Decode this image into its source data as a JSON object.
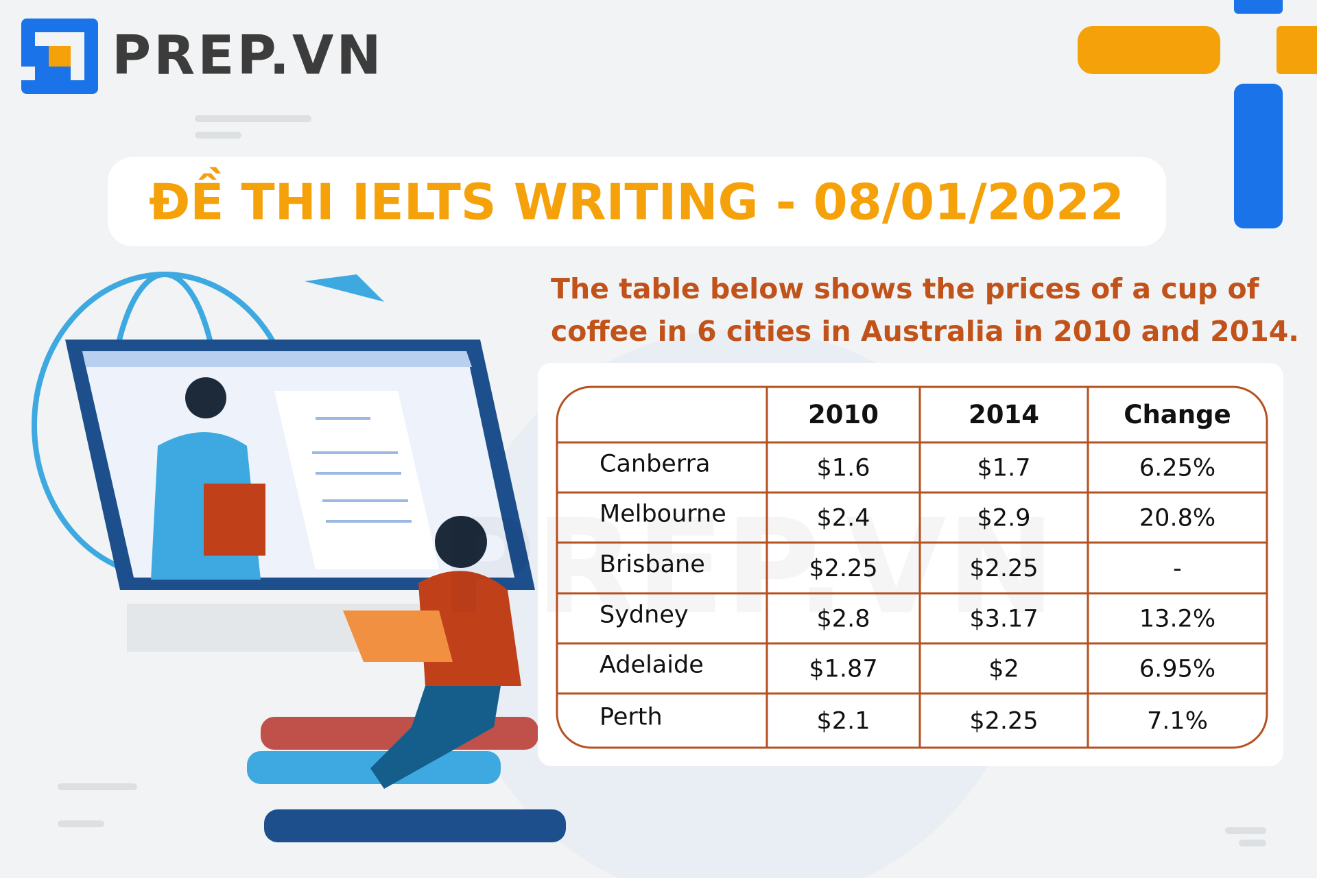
{
  "logo": "PREP.VN",
  "title": "ĐỀ THI IELTS WRITING - 08/01/2022",
  "prompt": [
    "The table below shows the prices of a cup of",
    "coffee in 6 cities in Australia in 2010 and 2014."
  ],
  "table": {
    "columns": [
      "2010",
      "2014",
      "Change"
    ],
    "rows": [
      [
        "Canberra",
        "$1.6",
        "$1.7",
        "6.25%"
      ],
      [
        "Melbourne",
        "$2.4",
        "$2.9",
        "20.8%"
      ],
      [
        "Brisbane",
        "$2.25",
        "$2.25",
        "-"
      ],
      [
        "Sydney",
        "$2.8",
        "$3.17",
        "13.2%"
      ],
      [
        "Adelaide",
        "$1.87",
        "$2",
        "6.95%"
      ],
      [
        "Perth",
        "$2.1",
        "$2.25",
        "7.1%"
      ]
    ]
  }
}
